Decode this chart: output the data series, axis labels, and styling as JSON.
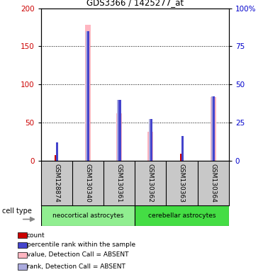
{
  "title": "GDS3366 / 1425277_at",
  "samples": [
    "GSM128874",
    "GSM130340",
    "GSM130361",
    "GSM130362",
    "GSM130363",
    "GSM130364"
  ],
  "group1_name": "neocortical astrocytes",
  "group2_name": "cerebellar astrocytes",
  "group1_color": "#90EE90",
  "group2_color": "#44DD44",
  "count_values": [
    7,
    0,
    0,
    0,
    9,
    0
  ],
  "percentile_values": [
    12,
    85,
    40,
    27,
    16,
    42
  ],
  "value_absent": [
    0,
    178,
    62,
    38,
    0,
    83
  ],
  "rank_absent": [
    0,
    85,
    40,
    27,
    0,
    42
  ],
  "ylim_left": [
    0,
    200
  ],
  "ylim_right": [
    0,
    100
  ],
  "left_ticks": [
    0,
    50,
    100,
    150,
    200
  ],
  "right_ticks": [
    0,
    25,
    50,
    75,
    100
  ],
  "right_tick_labels": [
    "0",
    "25",
    "50",
    "75",
    "100%"
  ],
  "left_color": "#CC0000",
  "right_color": "#0000CC",
  "count_color": "#CC0000",
  "percentile_color": "#4444CC",
  "value_absent_color": "#FFB6C1",
  "rank_absent_color": "#AAAADD",
  "bg_color": "#FFFFFF",
  "sample_bg": "#C8C8C8",
  "legend_items": [
    {
      "color": "#CC0000",
      "label": "count"
    },
    {
      "color": "#4444CC",
      "label": "percentile rank within the sample"
    },
    {
      "color": "#FFB6C1",
      "label": "value, Detection Call = ABSENT"
    },
    {
      "color": "#AAAADD",
      "label": "rank, Detection Call = ABSENT"
    }
  ]
}
